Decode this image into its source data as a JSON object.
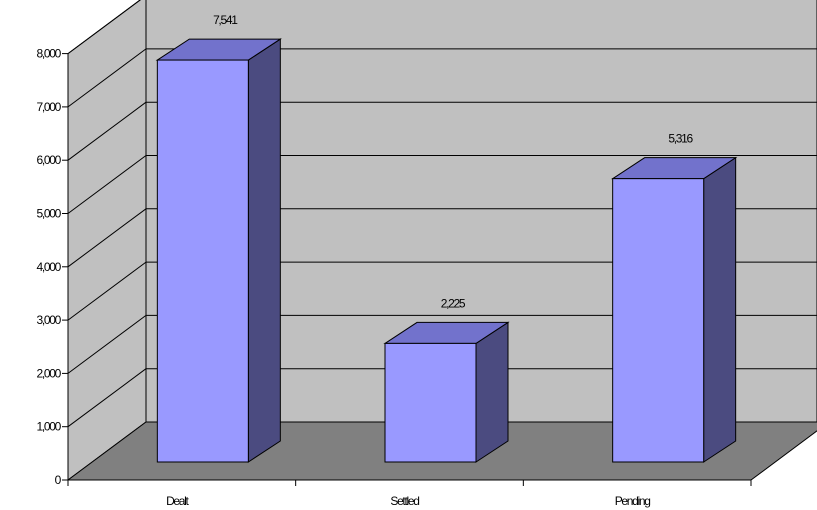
{
  "chart_data": {
    "type": "bar",
    "title": "",
    "xlabel": "",
    "ylabel": "",
    "categories": [
      "Dealt",
      "Settled",
      "Pending"
    ],
    "values": [
      7541,
      2225,
      5316
    ],
    "data_labels": [
      "7,541",
      "2,225",
      "5,316"
    ],
    "ylim": [
      0,
      8000
    ],
    "yticks": [
      0,
      1000,
      2000,
      3000,
      4000,
      5000,
      6000,
      7000,
      8000
    ],
    "ytick_labels": [
      "0",
      "1,000",
      "2,000",
      "3,000",
      "4,000",
      "5,000",
      "6,000",
      "7,000",
      "8,000"
    ],
    "grid": true,
    "legend": "none",
    "style": "3d-column"
  },
  "colors": {
    "bar_front": "#9999ff",
    "bar_top": "#7272cc",
    "bar_side": "#4b4b80",
    "back_wall": "#c0c0c0",
    "side_wall": "#c0c0c0",
    "floor": "#808080"
  }
}
